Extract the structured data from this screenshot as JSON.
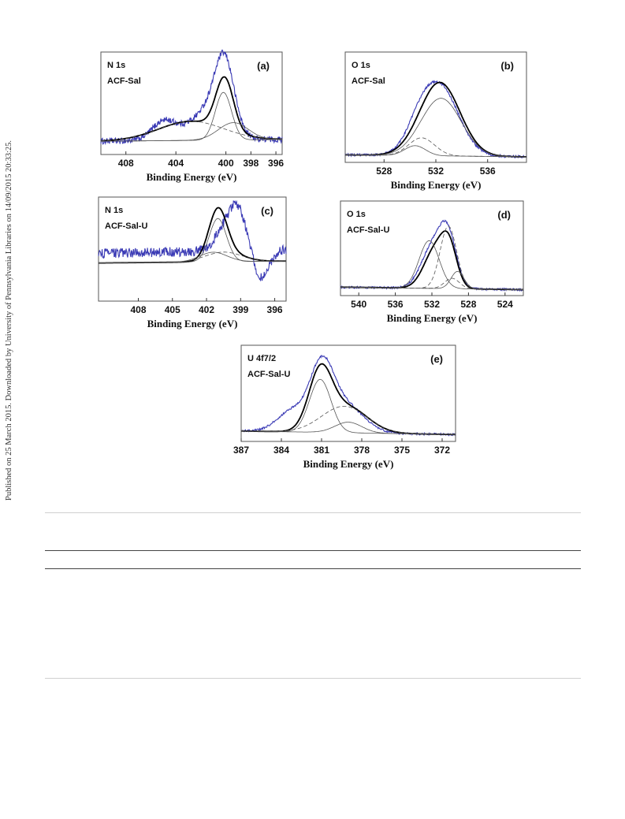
{
  "side_note": "Published on 25 March 2015. Downloaded by University of Pennsylvania Libraries on 14/09/2015 20:33:25.",
  "colors": {
    "measured": "#3b3bb5",
    "fit": "#000000",
    "component": "#555555",
    "frame": "#555555"
  },
  "chart_data": [
    {
      "id": "a",
      "type": "line",
      "panel_label": "(a)",
      "title_lines": [
        "N 1s",
        "ACF-Sal"
      ],
      "xlabel": "Binding Energy (eV)",
      "xlim": [
        410,
        395.5
      ],
      "ylim": [
        0,
        1
      ],
      "xticks": [
        408,
        404,
        400,
        398,
        396
      ],
      "series": [
        {
          "kind": "measured",
          "peaks": [
            [
              400.1,
              0.72,
              0.75
            ],
            [
              401.0,
              0.28,
              1.3
            ],
            [
              405.0,
              0.18,
              0.9
            ],
            [
              402.5,
              0.12,
              2.0
            ]
          ],
          "baseline": [
            0.08,
            0.1
          ],
          "noise": 0.035
        },
        {
          "kind": "fit",
          "peaks": [
            [
              400.1,
              0.6,
              0.7
            ],
            [
              402.8,
              0.22,
              2.6
            ]
          ],
          "baseline": [
            0.08,
            0.1
          ]
        },
        {
          "kind": "component",
          "peaks": [
            [
              400.2,
              0.55,
              0.65
            ]
          ],
          "baseline": [
            0.08,
            0.1
          ]
        },
        {
          "kind": "component",
          "peaks": [
            [
              402.8,
              0.22,
              2.6
            ]
          ],
          "baseline": [
            0.08,
            0.1
          ]
        },
        {
          "kind": "component",
          "peaks": [
            [
              399.4,
              0.2,
              1.2
            ]
          ],
          "baseline": [
            0.08,
            0.1
          ]
        }
      ]
    },
    {
      "id": "b",
      "type": "line",
      "panel_label": "(b)",
      "title_lines": [
        "O 1s",
        "ACF-Sal"
      ],
      "xlabel": "Binding Energy (eV)",
      "xlim": [
        525,
        539
      ],
      "ylim": [
        0,
        1
      ],
      "xticks": [
        528,
        532,
        536
      ],
      "series": [
        {
          "kind": "measured",
          "peaks": [
            [
              532.2,
              0.72,
              1.5
            ],
            [
              530.6,
              0.12,
              0.9
            ]
          ],
          "baseline": [
            0.06,
            0.04
          ],
          "noise": 0.012
        },
        {
          "kind": "fit",
          "peaks": [
            [
              532.3,
              0.74,
              1.55
            ]
          ],
          "baseline": [
            0.06,
            0.04
          ]
        },
        {
          "kind": "component",
          "peaks": [
            [
              532.4,
              0.58,
              1.55
            ]
          ],
          "baseline": [
            0.06,
            0.04
          ]
        },
        {
          "kind": "component",
          "peaks": [
            [
              530.9,
              0.18,
              1.0
            ]
          ],
          "baseline": [
            0.06,
            0.04
          ]
        },
        {
          "kind": "component",
          "peaks": [
            [
              530.4,
              0.1,
              0.8
            ]
          ],
          "baseline": [
            0.06,
            0.04
          ]
        }
      ]
    },
    {
      "id": "c",
      "type": "line",
      "panel_label": "(c)",
      "title_lines": [
        "N 1s",
        "ACF-Sal-U"
      ],
      "xlabel": "Binding Energy (eV)",
      "xlim": [
        411.5,
        395
      ],
      "ylim": [
        0,
        1
      ],
      "xticks": [
        408,
        405,
        402,
        399,
        396
      ],
      "series": [
        {
          "kind": "measured",
          "peaks": [
            [
              399.3,
              0.45,
              0.8
            ],
            [
              400.7,
              0.15,
              0.8
            ],
            [
              397.2,
              -0.3,
              0.7
            ]
          ],
          "baseline": [
            0.48,
            0.52
          ],
          "noise": 0.05
        },
        {
          "kind": "fit",
          "peaks": [
            [
              401.0,
              0.5,
              0.8
            ],
            [
              400.0,
              0.08,
              1.4
            ]
          ],
          "baseline": [
            0.38,
            0.4
          ]
        },
        {
          "kind": "component",
          "peaks": [
            [
              401.0,
              0.45,
              0.75
            ]
          ],
          "baseline": [
            0.38,
            0.4
          ]
        },
        {
          "kind": "component",
          "peaks": [
            [
              400.5,
              0.1,
              1.6
            ]
          ],
          "baseline": [
            0.38,
            0.4
          ]
        },
        {
          "kind": "component",
          "peaks": [
            [
              401.4,
              0.1,
              1.2
            ]
          ],
          "baseline": [
            0.38,
            0.4
          ]
        }
      ]
    },
    {
      "id": "d",
      "type": "line",
      "panel_label": "(d)",
      "title_lines": [
        "O 1s",
        "ACF-Sal-U"
      ],
      "xlabel": "Binding Energy (eV)",
      "xlim": [
        542,
        522
      ],
      "ylim": [
        0,
        1
      ],
      "xticks": [
        540,
        536,
        532,
        528,
        524
      ],
      "series": [
        {
          "kind": "measured",
          "peaks": [
            [
              531.8,
              0.5,
              1.3
            ],
            [
              530.2,
              0.5,
              0.9
            ]
          ],
          "baseline": [
            0.08,
            0.05
          ],
          "noise": 0.012
        },
        {
          "kind": "fit",
          "peaks": [
            [
              531.6,
              0.45,
              1.25
            ],
            [
              530.1,
              0.4,
              0.85
            ]
          ],
          "baseline": [
            0.08,
            0.05
          ]
        },
        {
          "kind": "component",
          "peaks": [
            [
              532.3,
              0.55,
              1.1
            ]
          ],
          "baseline": [
            0.08,
            0.05
          ]
        },
        {
          "kind": "component",
          "peaks": [
            [
              530.2,
              0.72,
              0.9
            ]
          ],
          "baseline": [
            0.08,
            0.05
          ]
        },
        {
          "kind": "component",
          "peaks": [
            [
              529.2,
              0.2,
              0.7
            ]
          ],
          "baseline": [
            0.08,
            0.05
          ]
        },
        {
          "kind": "component",
          "peaks": [
            [
              529.8,
              0.12,
              0.8
            ]
          ],
          "baseline": [
            0.08,
            0.05
          ]
        }
      ]
    },
    {
      "id": "e",
      "type": "line",
      "panel_label": "(e)",
      "title_lines": [
        "U 4f7/2",
        "ACF-Sal-U"
      ],
      "xlabel": "Binding Energy (eV)",
      "xlim": [
        387,
        371
      ],
      "ylim": [
        0,
        1
      ],
      "xticks": [
        387,
        384,
        381,
        378,
        375,
        372
      ],
      "series": [
        {
          "kind": "measured",
          "peaks": [
            [
              381.0,
              0.6,
              0.85
            ],
            [
              379.3,
              0.3,
              1.4
            ],
            [
              383.3,
              0.16,
              1.0
            ],
            [
              381.8,
              0.12,
              1.8
            ]
          ],
          "baseline": [
            0.1,
            0.06
          ],
          "noise": 0.012
        },
        {
          "kind": "fit",
          "peaks": [
            [
              381.1,
              0.62,
              0.85
            ],
            [
              379.2,
              0.3,
              1.6
            ]
          ],
          "baseline": [
            0.1,
            0.06
          ]
        },
        {
          "kind": "component",
          "peaks": [
            [
              381.1,
              0.6,
              0.8
            ]
          ],
          "baseline": [
            0.1,
            0.06
          ]
        },
        {
          "kind": "component",
          "peaks": [
            [
              379.3,
              0.3,
              1.7
            ]
          ],
          "baseline": [
            0.1,
            0.06
          ]
        },
        {
          "kind": "component",
          "peaks": [
            [
              379.0,
              0.12,
              1.0
            ]
          ],
          "baseline": [
            0.1,
            0.06
          ]
        }
      ]
    }
  ]
}
